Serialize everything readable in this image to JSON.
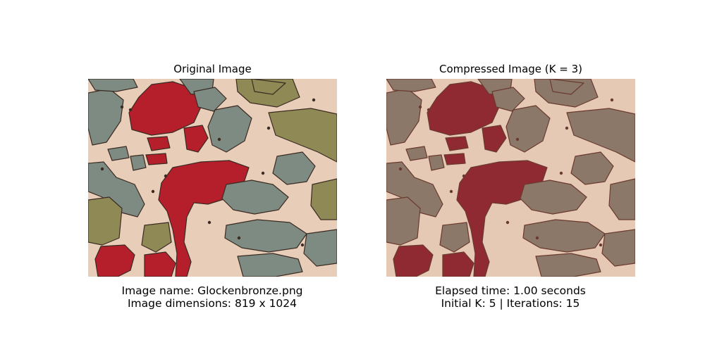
{
  "left_panel": {
    "title": "Original Image",
    "caption_line1": "Image name: Glockenbronze.png",
    "caption_line2": "Image dimensions: 819 x 1024"
  },
  "right_panel": {
    "title": "Compressed Image (K = 3)",
    "caption_line1": "Elapsed time: 1.00 seconds",
    "caption_line2": "Initial K: 5 | Iterations: 15"
  },
  "palette": {
    "original": {
      "background": "#e8cdb8",
      "red": "#b51f2c",
      "olive": "#8f8a55",
      "gray": "#7e8b82",
      "dark": "#3a2a22"
    },
    "compressed": {
      "background": "#e6c9b4",
      "red": "#8f2a33",
      "olive": "#8b7868",
      "gray": "#8b7868",
      "dark": "#6a3a30"
    }
  }
}
